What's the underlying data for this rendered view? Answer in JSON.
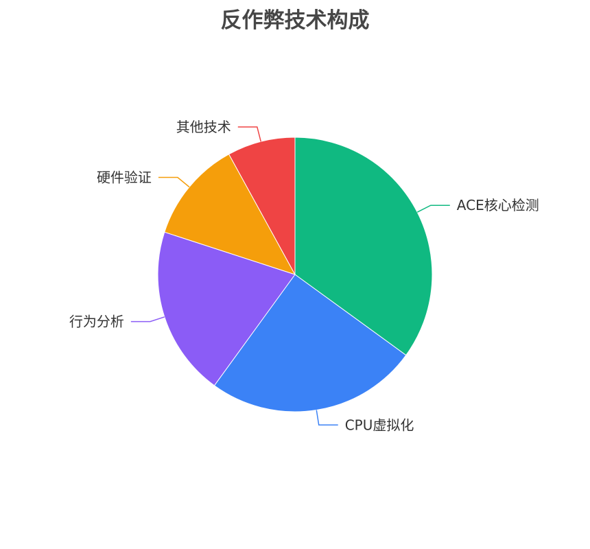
{
  "chart_data": {
    "type": "pie",
    "title": "反作弊技术构成",
    "start": "top",
    "direction": "clockwise",
    "slices": [
      {
        "label": "ACE核心检测",
        "value": 35,
        "color": "#10b981"
      },
      {
        "label": "CPU虚拟化",
        "value": 25,
        "color": "#3b82f6"
      },
      {
        "label": "行为分析",
        "value": 20,
        "color": "#8b5cf6"
      },
      {
        "label": "硬件验证",
        "value": 12,
        "color": "#f59e0b"
      },
      {
        "label": "其他技术",
        "value": 8,
        "color": "#ef4444"
      }
    ]
  }
}
